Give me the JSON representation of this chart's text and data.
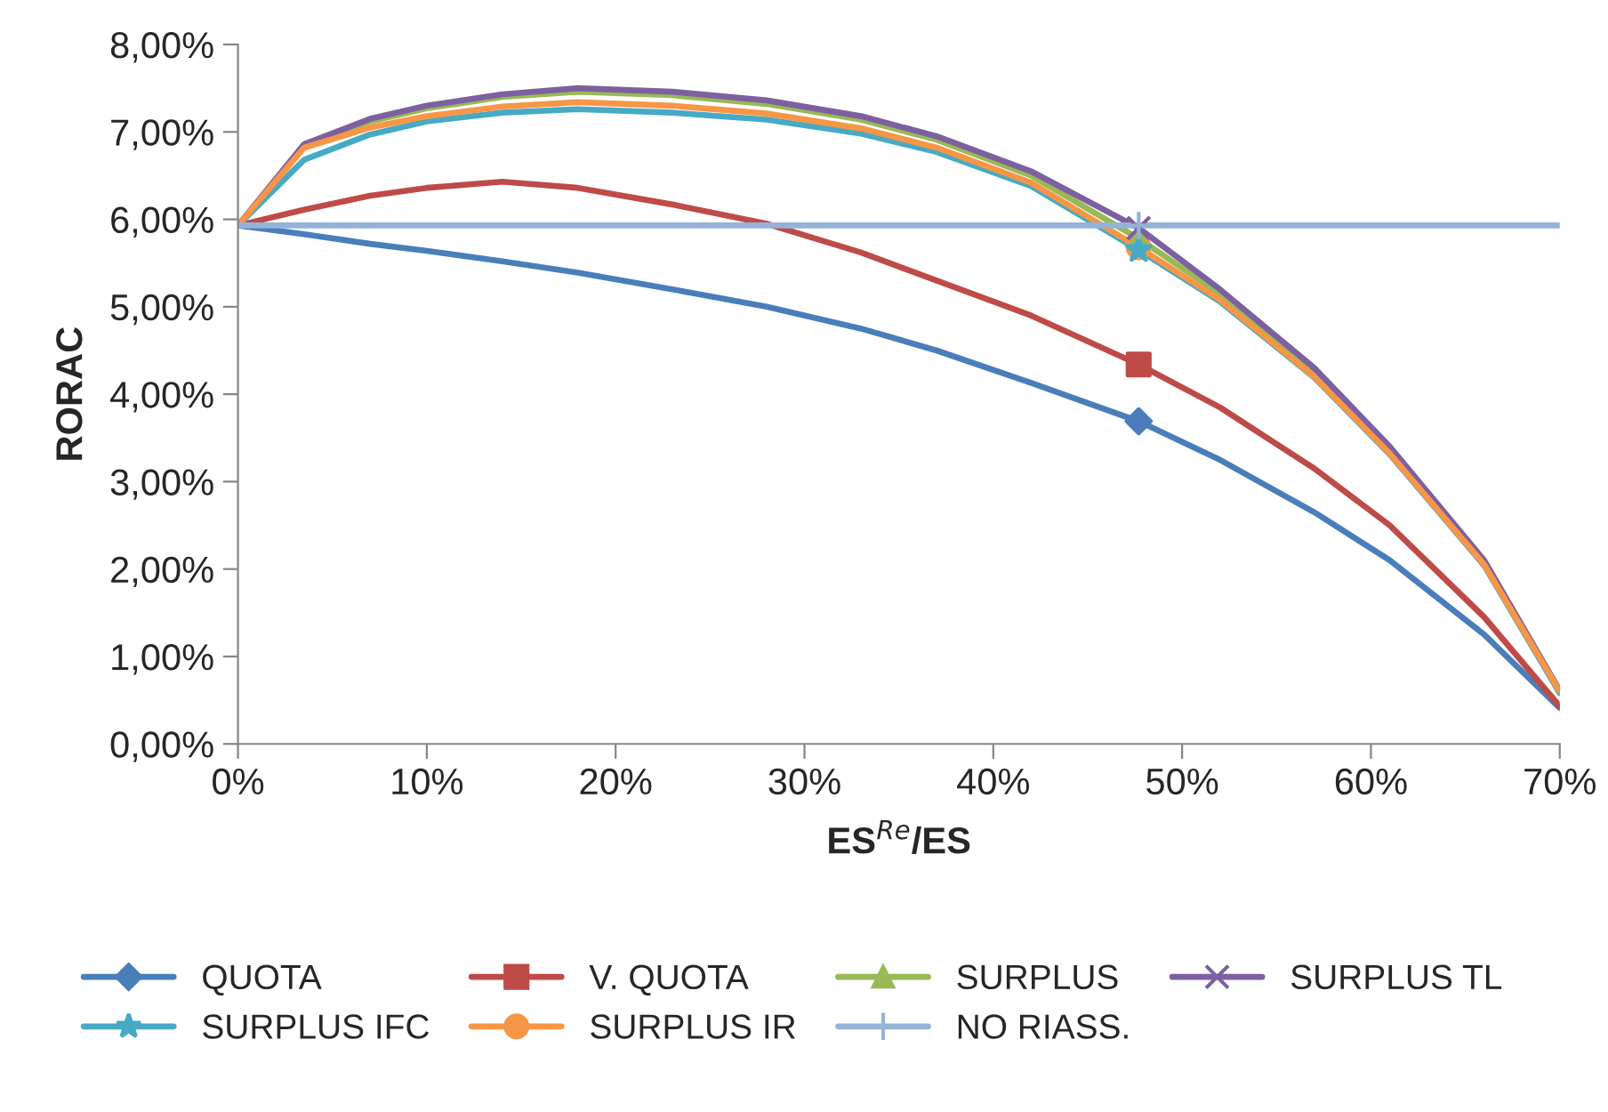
{
  "chart_data": {
    "type": "line",
    "xlabel": "ES$^{Re}$/ES",
    "ylabel": "RORAC",
    "xlim": [
      0,
      70
    ],
    "xticks": [
      {
        "value": 0,
        "label": "0%"
      },
      {
        "value": 10,
        "label": "10%"
      },
      {
        "value": 20,
        "label": "20%"
      },
      {
        "value": 30,
        "label": "30%"
      },
      {
        "value": 40,
        "label": "40%"
      },
      {
        "value": 50,
        "label": "50%"
      },
      {
        "value": 60,
        "label": "60%"
      },
      {
        "value": 70,
        "label": "70%"
      }
    ],
    "ylim": [
      0,
      8
    ],
    "yticks": [
      {
        "value": 0,
        "label": "0,00%"
      },
      {
        "value": 1,
        "label": "1,00%"
      },
      {
        "value": 2,
        "label": "2,00%"
      },
      {
        "value": 3,
        "label": "3,00%"
      },
      {
        "value": 4,
        "label": "4,00%"
      },
      {
        "value": 5,
        "label": "5,00%"
      },
      {
        "value": 6,
        "label": "6,00%"
      },
      {
        "value": 7,
        "label": "7,00%"
      },
      {
        "value": 8,
        "label": "8,00%"
      }
    ],
    "grid": false,
    "legend": "bottom",
    "line_style": "solid",
    "x": [
      0,
      3.5,
      7,
      10,
      14,
      18,
      23,
      28,
      33,
      37,
      42,
      47.7,
      52,
      57,
      61,
      66,
      70
    ],
    "series": [
      {
        "name": "QUOTA",
        "color": "#4a7ebb",
        "values": [
          5.93,
          5.83,
          5.72,
          5.64,
          5.52,
          5.39,
          5.2,
          5.0,
          4.75,
          4.5,
          4.13,
          3.69,
          3.25,
          2.65,
          2.1,
          1.25,
          0.41
        ]
      },
      {
        "name": "V. QUOTA",
        "color": "#be4b48",
        "values": [
          5.93,
          6.11,
          6.27,
          6.36,
          6.43,
          6.36,
          6.17,
          5.95,
          5.62,
          5.3,
          4.9,
          4.34,
          3.85,
          3.15,
          2.5,
          1.45,
          0.43
        ]
      },
      {
        "name": "SURPLUS",
        "color": "#98b954",
        "values": [
          5.93,
          6.84,
          7.12,
          7.27,
          7.4,
          7.46,
          7.42,
          7.32,
          7.14,
          6.91,
          6.5,
          5.78,
          5.15,
          4.25,
          3.35,
          2.07,
          0.6
        ]
      },
      {
        "name": "SURPLUS TL",
        "color": "#7d60a0",
        "values": [
          5.93,
          6.86,
          7.15,
          7.3,
          7.43,
          7.5,
          7.46,
          7.36,
          7.18,
          6.95,
          6.55,
          5.9,
          5.2,
          4.3,
          3.4,
          2.1,
          0.61
        ]
      },
      {
        "name": "SURPLUS IFC",
        "color": "#46aac5",
        "values": [
          5.93,
          6.68,
          6.97,
          7.12,
          7.22,
          7.26,
          7.22,
          7.14,
          6.98,
          6.77,
          6.38,
          5.65,
          5.06,
          4.19,
          3.31,
          2.04,
          0.58
        ]
      },
      {
        "name": "SURPLUS IR",
        "color": "#f79646",
        "values": [
          5.93,
          6.82,
          7.05,
          7.18,
          7.29,
          7.34,
          7.3,
          7.21,
          7.04,
          6.82,
          6.42,
          5.68,
          5.08,
          4.2,
          3.32,
          2.05,
          0.6
        ]
      },
      {
        "name": "NO RIASS.",
        "color": "#95b3d7",
        "x": [
          0,
          47.7,
          70
        ],
        "values": [
          5.93,
          5.93,
          5.93
        ]
      },
      {
        "type": "scatter",
        "color": "#4a7ebb",
        "marker": "diamond",
        "x": [
          47.7
        ],
        "values": [
          3.69
        ]
      },
      {
        "type": "scatter",
        "color": "#be4b48",
        "marker": "square",
        "x": [
          47.7
        ],
        "values": [
          4.34
        ]
      },
      {
        "type": "scatter",
        "color": "#f79646",
        "marker": "circle",
        "x": [
          47.7
        ],
        "values": [
          5.68
        ]
      },
      {
        "type": "scatter",
        "color": "#98b954",
        "marker": "triangle",
        "x": [
          47.7
        ],
        "values": [
          5.78
        ]
      },
      {
        "type": "scatter",
        "color": "#46aac5",
        "marker": "star",
        "x": [
          47.7
        ],
        "values": [
          5.65
        ]
      },
      {
        "type": "scatter",
        "color": "#7d60a0",
        "marker": "x",
        "x": [
          47.7
        ],
        "values": [
          5.9
        ]
      },
      {
        "type": "scatter",
        "color": "#95b3d7",
        "marker": "cross",
        "x": [
          47.7
        ],
        "values": [
          5.93
        ]
      }
    ]
  }
}
